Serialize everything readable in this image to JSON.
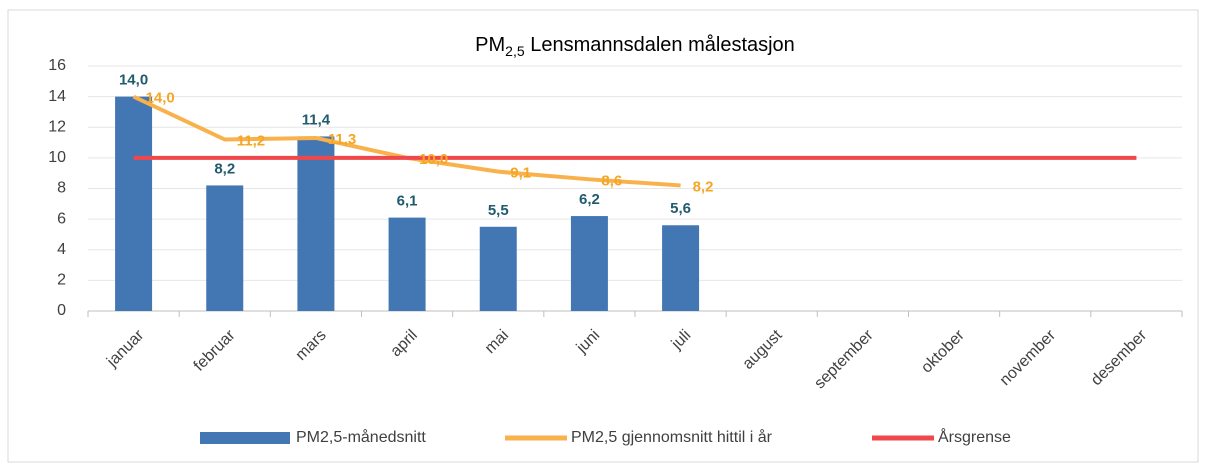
{
  "chart_data": {
    "type": "bar",
    "title": [
      "PM",
      "2,5",
      " Lensmannsdalen målestasjon"
    ],
    "categories": [
      "januar",
      "februar",
      "mars",
      "april",
      "mai",
      "juni",
      "juli",
      "august",
      "september",
      "oktober",
      "november",
      "desember"
    ],
    "series": [
      {
        "name": "PM2,5-månedsnitt",
        "type": "bar",
        "color": "#4277b3",
        "label_color": "#215b6e",
        "values": [
          14.0,
          8.2,
          11.4,
          6.1,
          5.5,
          6.2,
          5.6,
          null,
          null,
          null,
          null,
          null
        ],
        "value_labels": [
          "14,0",
          "8,2",
          "11,4",
          "6,1",
          "5,5",
          "6,2",
          "5,6",
          null,
          null,
          null,
          null,
          null
        ]
      },
      {
        "name": "PM2,5 gjennomsnitt hittil i år",
        "type": "line",
        "color": "#f9b14c",
        "label_color": "#f5a623",
        "values": [
          14.0,
          11.2,
          11.3,
          10.0,
          9.1,
          8.6,
          8.2,
          null,
          null,
          null,
          null,
          null
        ],
        "value_labels": [
          "14,0",
          "11,2",
          "11,3",
          "10,0",
          "9,1",
          "8,6",
          "8,2",
          null,
          null,
          null,
          null,
          null
        ]
      },
      {
        "name": "Årsgrense",
        "type": "line",
        "color": "#f0474a",
        "values": [
          10,
          10,
          10,
          10,
          10,
          10,
          10,
          10,
          10,
          10,
          10,
          10
        ]
      }
    ],
    "ylim": [
      0,
      16
    ],
    "yticks": [
      0,
      2,
      4,
      6,
      8,
      10,
      12,
      14,
      16
    ],
    "grid": true,
    "legend": "bottom"
  }
}
